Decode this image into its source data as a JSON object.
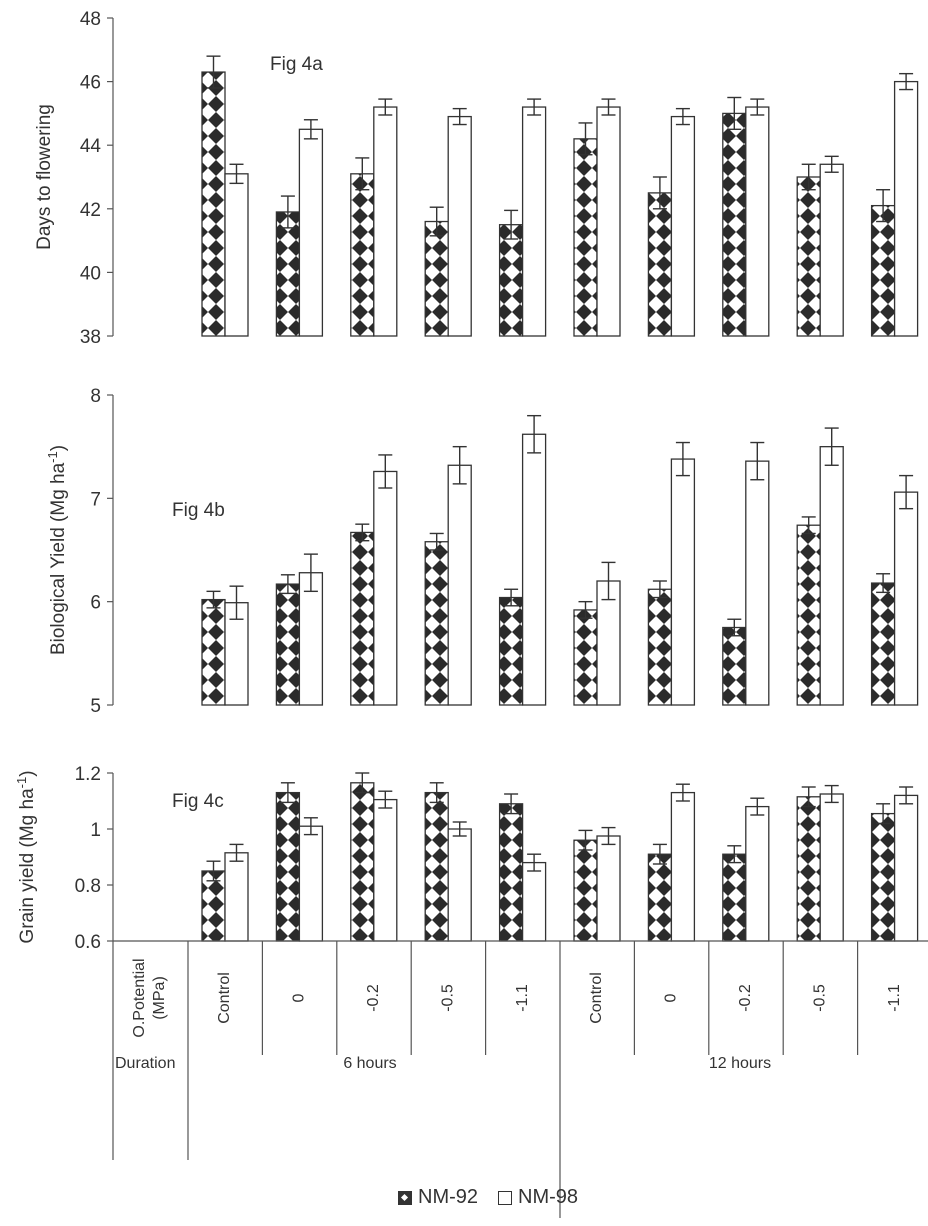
{
  "categories": [
    {
      "duration": "6 hours",
      "potential": "Control"
    },
    {
      "duration": "6 hours",
      "potential": "0"
    },
    {
      "duration": "6 hours",
      "potential": "-0.2"
    },
    {
      "duration": "6 hours",
      "potential": "-0.5"
    },
    {
      "duration": "6 hours",
      "potential": "-1.1"
    },
    {
      "duration": "12 hours",
      "potential": "Control"
    },
    {
      "duration": "12 hours",
      "potential": "0"
    },
    {
      "duration": "12 hours",
      "potential": "-0.2"
    },
    {
      "duration": "12 hours",
      "potential": "-0.5"
    },
    {
      "duration": "12 hours",
      "potential": "-1.1"
    }
  ],
  "table": {
    "potential_header": "O.Potential (MPa)",
    "duration_header": "Duration",
    "groups": [
      "6 hours",
      "12 hours"
    ]
  },
  "legend": [
    {
      "name": "NM-92",
      "color": "#333333"
    },
    {
      "name": "NM-98",
      "color": "#ffffff"
    }
  ],
  "chart_data": [
    {
      "type": "bar",
      "annotation": "Fig 4a",
      "ylabel": "Days to flowering",
      "ylim": [
        38,
        48
      ],
      "yticks": [
        38,
        40,
        42,
        44,
        46,
        48
      ],
      "series": [
        {
          "name": "NM-92",
          "values": [
            46.3,
            41.9,
            43.1,
            41.6,
            41.5,
            44.2,
            42.5,
            45.0,
            43.0,
            42.1
          ],
          "errors": [
            0.5,
            0.5,
            0.5,
            0.45,
            0.45,
            0.5,
            0.5,
            0.5,
            0.4,
            0.5
          ]
        },
        {
          "name": "NM-98",
          "values": [
            43.1,
            44.5,
            45.2,
            44.9,
            45.2,
            45.2,
            44.9,
            45.2,
            43.4,
            46.0
          ],
          "errors": [
            0.3,
            0.3,
            0.25,
            0.25,
            0.25,
            0.25,
            0.25,
            0.25,
            0.25,
            0.25
          ]
        }
      ]
    },
    {
      "type": "bar",
      "annotation": "Fig 4b",
      "ylabel": "Biological Yield (Mg ha-1)",
      "ylim": [
        5,
        8
      ],
      "yticks": [
        5,
        6,
        7,
        8
      ],
      "series": [
        {
          "name": "NM-92",
          "values": [
            6.02,
            6.17,
            6.67,
            6.58,
            6.04,
            5.92,
            6.12,
            5.75,
            6.74,
            6.18
          ],
          "errors": [
            0.08,
            0.09,
            0.08,
            0.08,
            0.08,
            0.08,
            0.08,
            0.08,
            0.08,
            0.09
          ]
        },
        {
          "name": "NM-98",
          "values": [
            5.99,
            6.28,
            7.26,
            7.32,
            7.62,
            6.2,
            7.38,
            7.36,
            7.5,
            7.06
          ],
          "errors": [
            0.16,
            0.18,
            0.16,
            0.18,
            0.18,
            0.18,
            0.16,
            0.18,
            0.18,
            0.16
          ]
        }
      ]
    },
    {
      "type": "bar",
      "annotation": "Fig 4c",
      "ylabel": "Grain yield (Mg ha-1)",
      "ylim": [
        0.6,
        1.2
      ],
      "yticks": [
        0.6,
        0.8,
        1.0,
        1.2
      ],
      "ytick_labels": [
        "0.6",
        "0.8",
        "1",
        "1.2"
      ],
      "series": [
        {
          "name": "NM-92",
          "values": [
            0.85,
            1.13,
            1.165,
            1.13,
            1.09,
            0.96,
            0.91,
            0.91,
            1.115,
            1.055
          ],
          "errors": [
            0.035,
            0.035,
            0.035,
            0.035,
            0.035,
            0.035,
            0.035,
            0.03,
            0.035,
            0.035
          ]
        },
        {
          "name": "NM-98",
          "values": [
            0.915,
            1.01,
            1.105,
            1.0,
            0.88,
            0.975,
            1.13,
            1.08,
            1.125,
            1.12
          ],
          "errors": [
            0.03,
            0.03,
            0.03,
            0.025,
            0.03,
            0.03,
            0.03,
            0.03,
            0.03,
            0.03
          ]
        }
      ]
    }
  ]
}
